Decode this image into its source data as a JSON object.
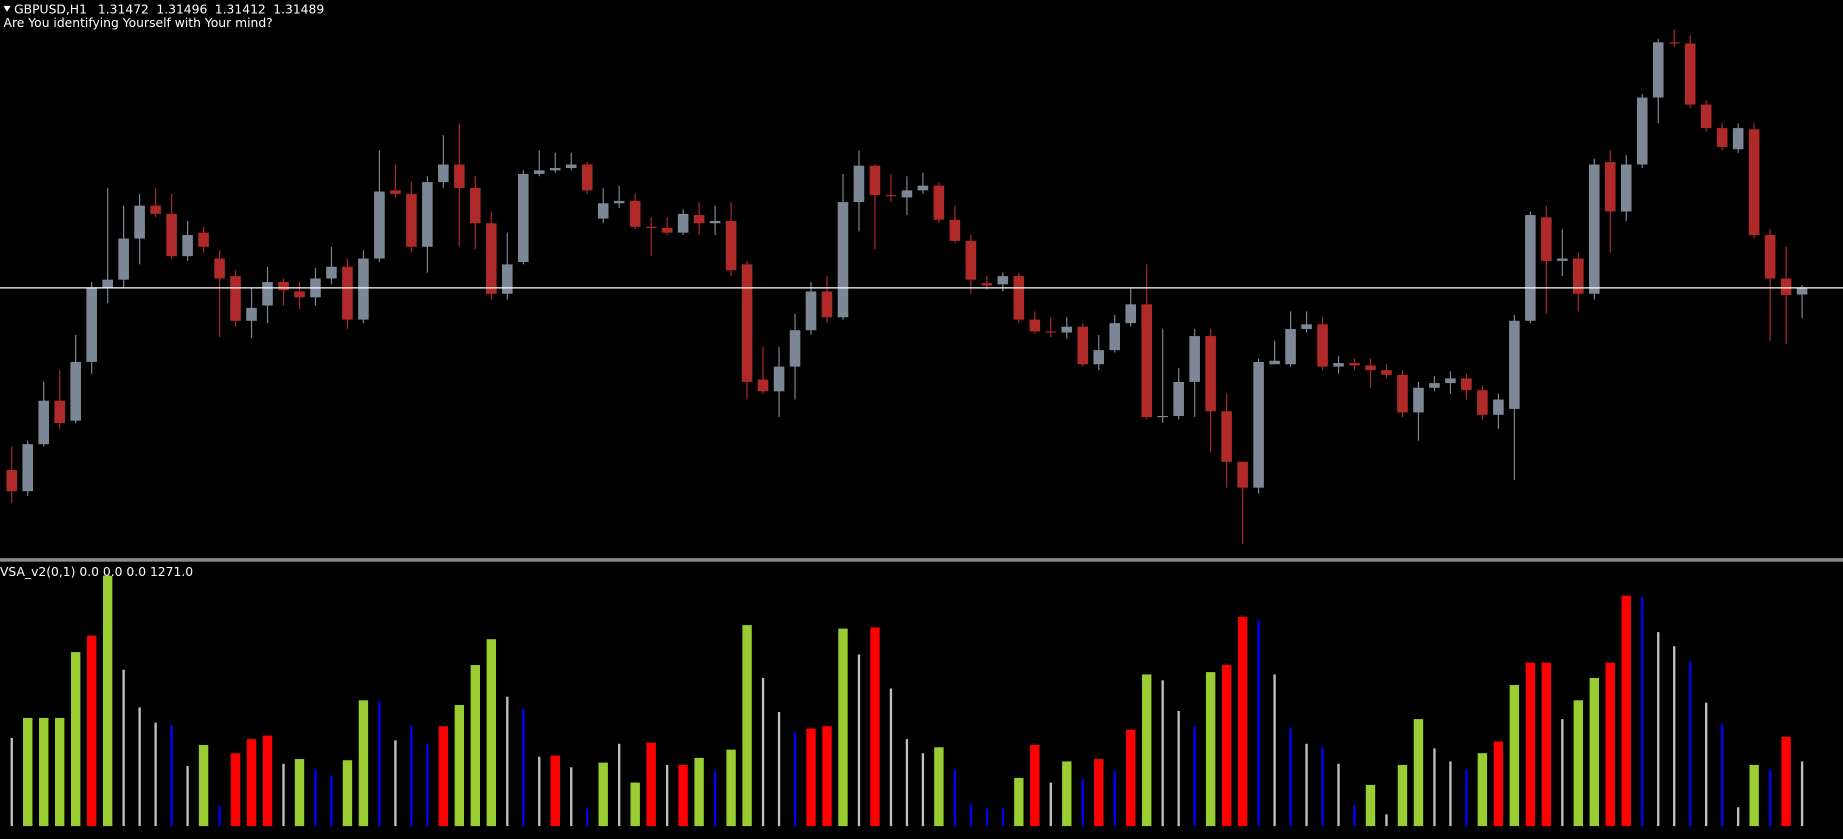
{
  "chart_data": [
    {
      "type": "candlestick",
      "title": "GBPUSD,H1",
      "subtitle": "Are You identifying Yourself with Your mind?",
      "up_color": "#7d8896",
      "down_color": "#b02a2a",
      "price_line_color": "#ffffff",
      "ylim": [
        1.30799,
        1.32224
      ],
      "open": [
        1.31024,
        1.3097,
        1.3109,
        1.31201,
        1.3115,
        1.313,
        1.31489,
        1.3151,
        1.31615,
        1.31699,
        1.31678,
        1.3157,
        1.3163,
        1.31564,
        1.31519,
        1.31405,
        1.31444,
        1.31504,
        1.3148,
        1.31465,
        1.31513,
        1.31543,
        1.31408,
        1.31564,
        1.31738,
        1.31729,
        1.31594,
        1.31759,
        1.31804,
        1.31744,
        1.31654,
        1.31474,
        1.31555,
        1.3178,
        1.31789,
        1.31795,
        1.31804,
        1.31666,
        1.31705,
        1.31711,
        1.31645,
        1.31642,
        1.3163,
        1.31675,
        1.31654,
        1.3166,
        1.31549,
        1.31255,
        1.31225,
        1.31288,
        1.31381,
        1.3148,
        1.31414,
        1.31708,
        1.31801,
        1.31726,
        1.3172,
        1.31738,
        1.3175,
        1.31663,
        1.31609,
        1.31501,
        1.31498,
        1.31519,
        1.31408,
        1.31378,
        1.31375,
        1.3139,
        1.31294,
        1.3133,
        1.31399,
        1.31447,
        1.31159,
        1.31162,
        1.31249,
        1.31366,
        1.31174,
        1.31045,
        1.30979,
        1.31294,
        1.31294,
        1.31384,
        1.31396,
        1.31288,
        1.31297,
        1.31291,
        1.31279,
        1.31267,
        1.31171,
        1.31234,
        1.31246,
        1.31258,
        1.31228,
        1.31165,
        1.3118,
        1.31405,
        1.31669,
        1.31558,
        1.31564,
        1.31474,
        1.3181,
        1.31684,
        1.31804,
        1.31975,
        1.32116,
        1.32113,
        1.31957,
        1.31897,
        1.31843,
        1.31894,
        1.31624,
        1.31513,
        1.31472
      ],
      "high": [
        1.31084,
        1.31099,
        1.31249,
        1.31279,
        1.31369,
        1.31504,
        1.31744,
        1.31699,
        1.31729,
        1.31744,
        1.31729,
        1.3166,
        1.31645,
        1.31585,
        1.31534,
        1.31489,
        1.31543,
        1.31513,
        1.31504,
        1.3154,
        1.31594,
        1.31564,
        1.31585,
        1.3184,
        1.31804,
        1.31759,
        1.31774,
        1.31879,
        1.31909,
        1.31774,
        1.31684,
        1.3163,
        1.31789,
        1.3184,
        1.31834,
        1.31834,
        1.3181,
        1.31744,
        1.3175,
        1.31729,
        1.31669,
        1.31669,
        1.3169,
        1.31708,
        1.31699,
        1.31708,
        1.31558,
        1.31339,
        1.31339,
        1.31423,
        1.31504,
        1.31519,
        1.3178,
        1.3184,
        1.31804,
        1.3178,
        1.31774,
        1.31783,
        1.31759,
        1.31699,
        1.31624,
        1.31519,
        1.31528,
        1.31528,
        1.31429,
        1.31414,
        1.31414,
        1.31399,
        1.31369,
        1.3142,
        1.31489,
        1.31549,
        1.31384,
        1.31285,
        1.31384,
        1.31384,
        1.31219,
        1.31045,
        1.31309,
        1.31354,
        1.31429,
        1.31429,
        1.31414,
        1.31315,
        1.31309,
        1.31309,
        1.31294,
        1.31279,
        1.31249,
        1.31264,
        1.31276,
        1.3127,
        1.3124,
        1.31219,
        1.3142,
        1.31684,
        1.31699,
        1.31639,
        1.31579,
        1.31819,
        1.3184,
        1.31828,
        1.31984,
        1.32125,
        1.32149,
        1.32134,
        1.31969,
        1.31909,
        1.31909,
        1.31909,
        1.31639,
        1.31594,
        1.31496
      ],
      "low": [
        1.3094,
        1.30958,
        1.31084,
        1.31129,
        1.31144,
        1.3127,
        1.3145,
        1.31489,
        1.31549,
        1.31669,
        1.31564,
        1.31558,
        1.31579,
        1.31363,
        1.3139,
        1.3136,
        1.31399,
        1.31444,
        1.31435,
        1.31444,
        1.31498,
        1.31384,
        1.31399,
        1.31555,
        1.3172,
        1.31579,
        1.31528,
        1.31744,
        1.31594,
        1.31588,
        1.31459,
        1.31459,
        1.31549,
        1.31774,
        1.31783,
        1.31789,
        1.31729,
        1.31654,
        1.31693,
        1.31639,
        1.3157,
        1.31624,
        1.31624,
        1.31624,
        1.31624,
        1.31519,
        1.31204,
        1.31219,
        1.31159,
        1.31204,
        1.31369,
        1.31399,
        1.31408,
        1.31633,
        1.31588,
        1.31708,
        1.31675,
        1.31729,
        1.31654,
        1.31603,
        1.31474,
        1.31483,
        1.3148,
        1.31399,
        1.31372,
        1.31363,
        1.3136,
        1.31288,
        1.31279,
        1.31324,
        1.3139,
        1.31153,
        1.31144,
        1.31153,
        1.31159,
        1.31069,
        1.30979,
        1.30835,
        1.30964,
        1.31294,
        1.31288,
        1.31375,
        1.31279,
        1.3127,
        1.31279,
        1.31234,
        1.31258,
        1.31159,
        1.31099,
        1.31225,
        1.31219,
        1.31204,
        1.31153,
        1.31129,
        1.30999,
        1.31399,
        1.31423,
        1.31519,
        1.31429,
        1.31459,
        1.31579,
        1.3166,
        1.31795,
        1.31909,
        1.32104,
        1.31948,
        1.31888,
        1.3184,
        1.31834,
        1.31615,
        1.31354,
        1.31345,
        1.31412
      ],
      "close": [
        1.3097,
        1.3109,
        1.31201,
        1.31144,
        1.313,
        1.31489,
        1.3151,
        1.31615,
        1.31699,
        1.31678,
        1.3157,
        1.31624,
        1.31594,
        1.31513,
        1.31405,
        1.31438,
        1.31504,
        1.31483,
        1.31465,
        1.31513,
        1.31543,
        1.31408,
        1.31564,
        1.31735,
        1.31729,
        1.31594,
        1.31759,
        1.31804,
        1.31744,
        1.31654,
        1.31474,
        1.31549,
        1.3178,
        1.31789,
        1.31795,
        1.31804,
        1.31738,
        1.31705,
        1.31711,
        1.31645,
        1.31642,
        1.3163,
        1.31678,
        1.31654,
        1.3166,
        1.31534,
        1.31249,
        1.31225,
        1.31288,
        1.31381,
        1.3148,
        1.31414,
        1.31708,
        1.31801,
        1.31726,
        1.31723,
        1.31738,
        1.3175,
        1.31663,
        1.31609,
        1.3151,
        1.31495,
        1.31519,
        1.31408,
        1.31378,
        1.31375,
        1.3139,
        1.31294,
        1.3133,
        1.31399,
        1.31447,
        1.31159,
        1.31162,
        1.31249,
        1.31366,
        1.31174,
        1.31045,
        1.30979,
        1.313,
        1.31303,
        1.31384,
        1.31396,
        1.31288,
        1.31297,
        1.31291,
        1.31279,
        1.31267,
        1.31171,
        1.31234,
        1.31246,
        1.31258,
        1.31228,
        1.31165,
        1.31204,
        1.31405,
        1.31675,
        1.31558,
        1.31564,
        1.31474,
        1.31804,
        1.31684,
        1.31804,
        1.31975,
        1.32116,
        1.32113,
        1.31957,
        1.31897,
        1.31849,
        1.31897,
        1.31624,
        1.31513,
        1.31471,
        1.31489
      ]
    },
    {
      "type": "bar",
      "title": "VSA_v2(0,1) 0.0 0.0 0.0 1271.0",
      "ylim": [
        0,
        5150
      ],
      "values": [
        1733,
        2125,
        2125,
        2125,
        3419,
        3742,
        4920,
        3072,
        2333,
        2033,
        1987,
        1178,
        1594,
        393,
        1432,
        1709,
        1779,
        1224,
        1317,
        1109,
        993,
        1294,
        2472,
        2449,
        1686,
        1964,
        1617,
        1964,
        2379,
        3165,
        3673,
        2541,
        2310,
        1363,
        1386,
        1155,
        347,
        1247,
        1617,
        855,
        1640,
        1201,
        1201,
        1340,
        1086,
        1502,
        3950,
        2911,
        2241,
        1848,
        1917,
        1964,
        3881,
        3373,
        3904,
        2703,
        1709,
        1432,
        1548,
        1109,
        439,
        347,
        347,
        947,
        1594,
        855,
        1271,
        924,
        1317,
        1086,
        1894,
        2980,
        2864,
        2264,
        1964,
        3026,
        3165,
        4112,
        4043,
        2980,
        1940,
        1617,
        1548,
        1224,
        416,
        809,
        231,
        1201,
        2102,
        1525,
        1271,
        1109,
        1432,
        1663,
        2772,
        3211,
        3211,
        2102,
        2472,
        2911,
        3211,
        4528,
        4505,
        3812,
        3534,
        3234,
        2426,
        2010,
        370,
        1201,
        1109,
        1756,
        1271
      ],
      "colors": [
        "#c0c0c0",
        "#9acd32",
        "#9acd32",
        "#9acd32",
        "#9acd32",
        "#ff0000",
        "#9acd32",
        "#c0c0c0",
        "#c0c0c0",
        "#c0c0c0",
        "#0000ff",
        "#c0c0c0",
        "#9acd32",
        "#0000ff",
        "#ff0000",
        "#ff0000",
        "#ff0000",
        "#c0c0c0",
        "#9acd32",
        "#0000ff",
        "#0000ff",
        "#9acd32",
        "#9acd32",
        "#0000ff",
        "#c0c0c0",
        "#0000ff",
        "#0000ff",
        "#ff0000",
        "#9acd32",
        "#9acd32",
        "#9acd32",
        "#c0c0c0",
        "#0000ff",
        "#c0c0c0",
        "#ff0000",
        "#c0c0c0",
        "#0000ff",
        "#9acd32",
        "#c0c0c0",
        "#9acd32",
        "#ff0000",
        "#c0c0c0",
        "#ff0000",
        "#9acd32",
        "#0000ff",
        "#9acd32",
        "#9acd32",
        "#c0c0c0",
        "#c0c0c0",
        "#0000ff",
        "#ff0000",
        "#ff0000",
        "#9acd32",
        "#c0c0c0",
        "#ff0000",
        "#c0c0c0",
        "#c0c0c0",
        "#c0c0c0",
        "#9acd32",
        "#0000ff",
        "#0000ff",
        "#0000ff",
        "#0000ff",
        "#9acd32",
        "#ff0000",
        "#c0c0c0",
        "#9acd32",
        "#0000ff",
        "#ff0000",
        "#0000ff",
        "#ff0000",
        "#9acd32",
        "#c0c0c0",
        "#c0c0c0",
        "#0000ff",
        "#9acd32",
        "#ff0000",
        "#ff0000",
        "#0000ff",
        "#c0c0c0",
        "#0000ff",
        "#c0c0c0",
        "#0000ff",
        "#c0c0c0",
        "#0000ff",
        "#9acd32",
        "#c0c0c0",
        "#9acd32",
        "#9acd32",
        "#c0c0c0",
        "#c0c0c0",
        "#0000ff",
        "#9acd32",
        "#ff0000",
        "#9acd32",
        "#ff0000",
        "#ff0000",
        "#c0c0c0",
        "#9acd32",
        "#9acd32",
        "#ff0000",
        "#ff0000",
        "#0000ff",
        "#c0c0c0",
        "#c0c0c0",
        "#0000ff",
        "#c0c0c0",
        "#0000ff",
        "#c0c0c0",
        "#9acd32",
        "#0000ff",
        "#ff0000",
        "#c0c0c0"
      ]
    }
  ]
}
